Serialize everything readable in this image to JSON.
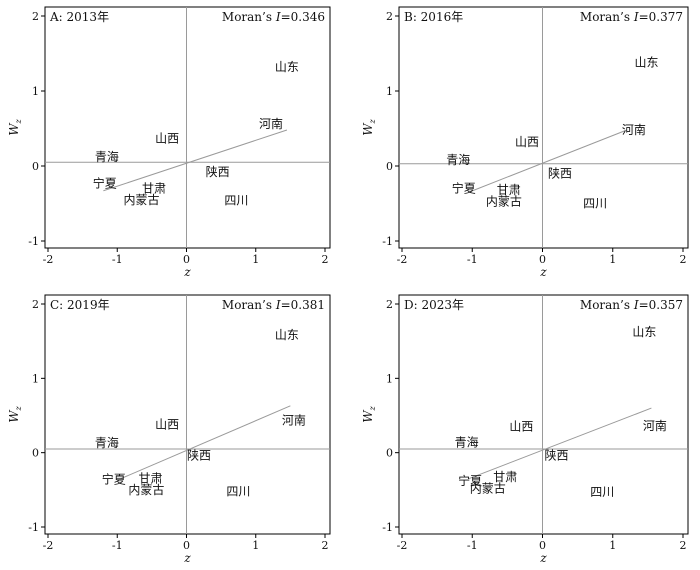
{
  "chart_data": [
    {
      "type": "scatter",
      "title": "A: 2013年",
      "annotation": {
        "prefix": "Moran’s ",
        "stat": "I",
        "suffix": "=0.346"
      },
      "xlabel": "z",
      "ylabel": {
        "main": "W",
        "sub": "z"
      },
      "xlim": [
        -2,
        2
      ],
      "ylim": [
        -1,
        2
      ],
      "xticks": [
        -2,
        -1,
        0,
        1,
        2
      ],
      "yticks": [
        -1,
        0,
        1,
        2
      ],
      "xtick_labels": [
        "-2",
        "-1",
        "0",
        "1",
        "2"
      ],
      "ytick_labels": [
        "-1",
        "0",
        "1",
        "2"
      ],
      "hline_y": 0.05,
      "vline_x": 0,
      "fit_line": {
        "x": [
          -1.2,
          1.45
        ],
        "y": [
          -0.33,
          0.48
        ]
      },
      "points": [
        {
          "label": "山东",
          "x": 1.45,
          "y": 1.32
        },
        {
          "label": "河南",
          "x": 1.22,
          "y": 0.56
        },
        {
          "label": "山西",
          "x": -0.28,
          "y": 0.37
        },
        {
          "label": "青海",
          "x": -1.15,
          "y": 0.12
        },
        {
          "label": "陕西",
          "x": 0.45,
          "y": -0.08
        },
        {
          "label": "宁夏",
          "x": -1.18,
          "y": -0.23
        },
        {
          "label": "甘肃",
          "x": -0.47,
          "y": -0.3
        },
        {
          "label": "内蒙古",
          "x": -0.65,
          "y": -0.45
        },
        {
          "label": "四川",
          "x": 0.72,
          "y": -0.46
        }
      ]
    },
    {
      "type": "scatter",
      "title": "B: 2016年",
      "annotation": {
        "prefix": "Moran’s ",
        "stat": "I",
        "suffix": "=0.377"
      },
      "xlabel": "z",
      "ylabel": {
        "main": "W",
        "sub": "z"
      },
      "xlim": [
        -2,
        2
      ],
      "ylim": [
        -1,
        2
      ],
      "xticks": [
        -2,
        -1,
        0,
        1,
        2
      ],
      "yticks": [
        -1,
        0,
        1,
        2
      ],
      "xtick_labels": [
        "-2",
        "-1",
        "0",
        "1",
        "2"
      ],
      "ytick_labels": [
        "-1",
        "0",
        "1",
        "2"
      ],
      "hline_y": 0.03,
      "vline_x": 0,
      "fit_line": {
        "x": [
          -1.05,
          1.2
        ],
        "y": [
          -0.35,
          0.48
        ]
      },
      "points": [
        {
          "label": "山东",
          "x": 1.48,
          "y": 1.38
        },
        {
          "label": "河南",
          "x": 1.3,
          "y": 0.48
        },
        {
          "label": "山西",
          "x": -0.22,
          "y": 0.32
        },
        {
          "label": "青海",
          "x": -1.2,
          "y": 0.08
        },
        {
          "label": "陕西",
          "x": 0.25,
          "y": -0.1
        },
        {
          "label": "宁夏",
          "x": -1.12,
          "y": -0.3
        },
        {
          "label": "甘肃",
          "x": -0.48,
          "y": -0.32
        },
        {
          "label": "内蒙古",
          "x": -0.55,
          "y": -0.47
        },
        {
          "label": "四川",
          "x": 0.75,
          "y": -0.5
        }
      ]
    },
    {
      "type": "scatter",
      "title": "C: 2019年",
      "annotation": {
        "prefix": "Moran’s ",
        "stat": "I",
        "suffix": "=0.381"
      },
      "xlabel": "z",
      "ylabel": {
        "main": "W",
        "sub": "z"
      },
      "xlim": [
        -2,
        2
      ],
      "ylim": [
        -1,
        2
      ],
      "xticks": [
        -2,
        -1,
        0,
        1,
        2
      ],
      "yticks": [
        -1,
        0,
        1,
        2
      ],
      "xtick_labels": [
        "-2",
        "-1",
        "0",
        "1",
        "2"
      ],
      "ytick_labels": [
        "-1",
        "0",
        "1",
        "2"
      ],
      "hline_y": 0.05,
      "vline_x": 0,
      "fit_line": {
        "x": [
          -0.95,
          1.5
        ],
        "y": [
          -0.35,
          0.63
        ]
      },
      "points": [
        {
          "label": "山东",
          "x": 1.45,
          "y": 1.58
        },
        {
          "label": "河南",
          "x": 1.55,
          "y": 0.43
        },
        {
          "label": "山西",
          "x": -0.28,
          "y": 0.38
        },
        {
          "label": "青海",
          "x": -1.15,
          "y": 0.13
        },
        {
          "label": "陕西",
          "x": 0.18,
          "y": -0.04
        },
        {
          "label": "宁夏",
          "x": -1.05,
          "y": -0.36
        },
        {
          "label": "甘肃",
          "x": -0.52,
          "y": -0.35
        },
        {
          "label": "内蒙古",
          "x": -0.58,
          "y": -0.5
        },
        {
          "label": "四川",
          "x": 0.75,
          "y": -0.52
        }
      ]
    },
    {
      "type": "scatter",
      "title": "D: 2023年",
      "annotation": {
        "prefix": "Moran’s ",
        "stat": "I",
        "suffix": "=0.357"
      },
      "xlabel": "z",
      "ylabel": {
        "main": "W",
        "sub": "z"
      },
      "xlim": [
        -2,
        2
      ],
      "ylim": [
        -1,
        2
      ],
      "xticks": [
        -2,
        -1,
        0,
        1,
        2
      ],
      "yticks": [
        -1,
        0,
        1,
        2
      ],
      "xtick_labels": [
        "-2",
        "-1",
        "0",
        "1",
        "2"
      ],
      "ytick_labels": [
        "-1",
        "0",
        "1",
        "2"
      ],
      "hline_y": 0.05,
      "vline_x": 0,
      "fit_line": {
        "x": [
          -1.05,
          1.55
        ],
        "y": [
          -0.35,
          0.6
        ]
      },
      "points": [
        {
          "label": "山东",
          "x": 1.45,
          "y": 1.62
        },
        {
          "label": "河南",
          "x": 1.6,
          "y": 0.36
        },
        {
          "label": "山西",
          "x": -0.3,
          "y": 0.35
        },
        {
          "label": "青海",
          "x": -1.08,
          "y": 0.14
        },
        {
          "label": "陕西",
          "x": 0.2,
          "y": -0.04
        },
        {
          "label": "宁夏",
          "x": -1.03,
          "y": -0.38
        },
        {
          "label": "甘肃",
          "x": -0.53,
          "y": -0.33
        },
        {
          "label": "内蒙古",
          "x": -0.78,
          "y": -0.48
        },
        {
          "label": "四川",
          "x": 0.85,
          "y": -0.53
        }
      ]
    }
  ]
}
